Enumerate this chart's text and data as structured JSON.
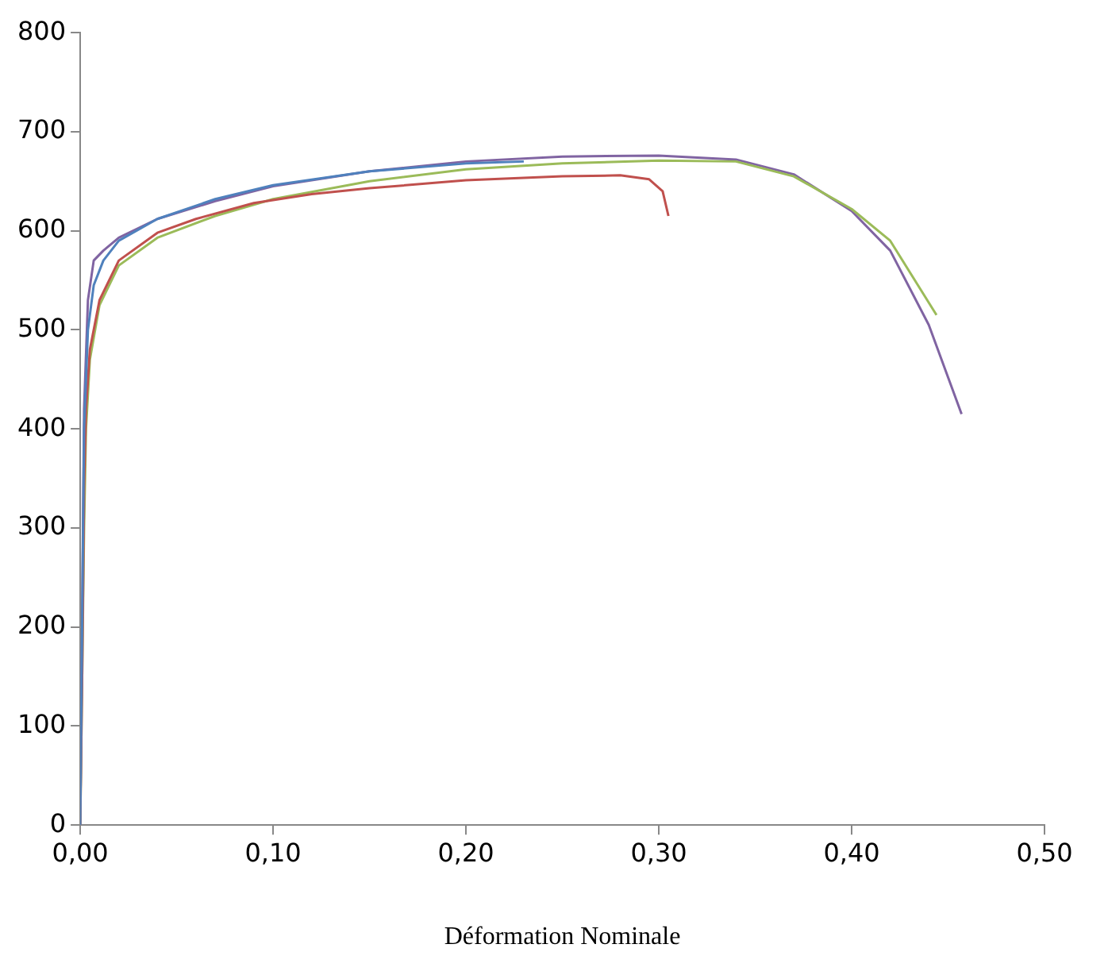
{
  "chart_data": {
    "type": "line",
    "xlabel": "Déformation Nominale",
    "xlim": [
      0,
      0.5
    ],
    "ylim": [
      0,
      800
    ],
    "xticks": [
      {
        "value": 0,
        "label": "0,00"
      },
      {
        "value": 0.1,
        "label": "0,10"
      },
      {
        "value": 0.2,
        "label": "0,20"
      },
      {
        "value": 0.3,
        "label": "0,30"
      },
      {
        "value": 0.4,
        "label": "0,40"
      },
      {
        "value": 0.5,
        "label": "0,50"
      }
    ],
    "yticks": [
      0,
      100,
      200,
      300,
      400,
      500,
      600,
      700,
      800
    ],
    "grid": false,
    "legend": false,
    "marker": "none",
    "line_style": "solid",
    "series": [
      {
        "color": "#4f81bd",
        "x": [
          0,
          0.002,
          0.004,
          0.007,
          0.012,
          0.02,
          0.04,
          0.07,
          0.1,
          0.15,
          0.2,
          0.23
        ],
        "values": [
          0,
          400,
          500,
          545,
          570,
          590,
          612,
          632,
          646,
          660,
          668,
          670
        ]
      },
      {
        "color": "#c0504d",
        "x": [
          0,
          0.001,
          0.002,
          0.003,
          0.005,
          0.01,
          0.02,
          0.04,
          0.06,
          0.09,
          0.12,
          0.15,
          0.2,
          0.25,
          0.28,
          0.295,
          0.302,
          0.305
        ],
        "values": [
          0,
          150,
          340,
          420,
          480,
          530,
          570,
          598,
          612,
          628,
          637,
          643,
          651,
          655,
          656,
          652,
          640,
          615
        ]
      },
      {
        "color": "#9bbb59",
        "x": [
          0,
          0.002,
          0.003,
          0.005,
          0.01,
          0.02,
          0.04,
          0.07,
          0.1,
          0.15,
          0.2,
          0.25,
          0.3,
          0.34,
          0.37,
          0.4,
          0.42,
          0.444
        ],
        "values": [
          0,
          300,
          400,
          470,
          525,
          565,
          593,
          615,
          632,
          650,
          662,
          668,
          671,
          670,
          655,
          622,
          590,
          515
        ]
      },
      {
        "color": "#8064a2",
        "x": [
          0,
          0.002,
          0.004,
          0.007,
          0.012,
          0.02,
          0.04,
          0.07,
          0.1,
          0.15,
          0.2,
          0.25,
          0.3,
          0.34,
          0.37,
          0.4,
          0.42,
          0.44,
          0.457
        ],
        "values": [
          0,
          420,
          530,
          570,
          580,
          593,
          612,
          630,
          645,
          660,
          670,
          675,
          676,
          672,
          657,
          620,
          580,
          505,
          415
        ]
      }
    ]
  }
}
